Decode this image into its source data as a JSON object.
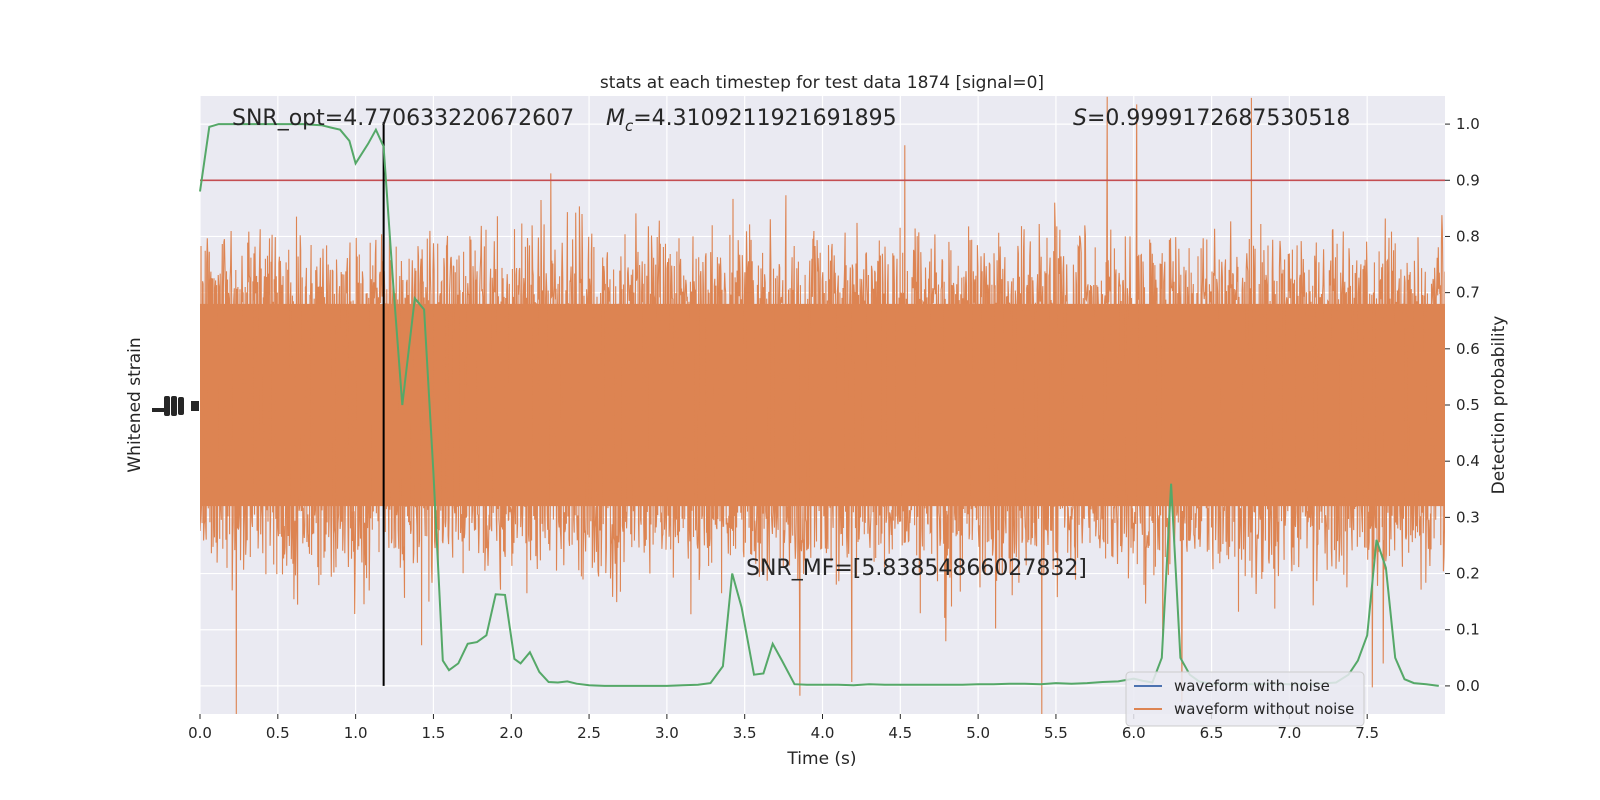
{
  "chart_data": {
    "type": "line",
    "title": "stats at each timestep for test data 1874 [signal=0]",
    "xlabel": "Time (s)",
    "ylabel_left": "Whitened strain",
    "ylabel_right": "Detection probability",
    "xlim": [
      0.0,
      8.0
    ],
    "ylim_right": [
      -0.05,
      1.05
    ],
    "x_ticks": [
      "0.0",
      "0.5",
      "1.0",
      "1.5",
      "2.0",
      "2.5",
      "3.0",
      "3.5",
      "4.0",
      "4.5",
      "5.0",
      "5.5",
      "6.0",
      "6.5",
      "7.0",
      "7.5"
    ],
    "y_ticks_right": [
      "0.0",
      "0.1",
      "0.2",
      "0.3",
      "0.4",
      "0.5",
      "0.6",
      "0.7",
      "0.8",
      "0.9",
      "1.0"
    ],
    "grid": true,
    "threshold": 0.9,
    "event_time": 1.18,
    "annotations": {
      "snr_opt": "SNR_opt=4.770633220672607",
      "mc_symbol": "M",
      "mc_sub": "c",
      "mc_value": "=4.3109211921691895",
      "s_symbol": "S",
      "s_value": "=0.9999172687530518",
      "snr_mf": "SNR_MF=[5.83854866027832]"
    },
    "legend": {
      "position": "lower-right",
      "entries": [
        {
          "name": "waveform with noise",
          "color": "#4c72b0"
        },
        {
          "name": "waveform without noise",
          "color": "#dd8452"
        }
      ]
    },
    "colors": {
      "noise": "#dd8452",
      "probability": "#55a868",
      "threshold": "#c44e52",
      "event_marker": "#000000",
      "background": "#eaeaf2"
    },
    "series": [
      {
        "name": "Detection probability",
        "x": [
          0.0,
          0.06,
          0.12,
          0.18,
          0.24,
          0.3,
          0.36,
          0.42,
          0.48,
          0.54,
          0.6,
          0.66,
          0.72,
          0.78,
          0.84,
          0.9,
          0.96,
          1.0,
          1.08,
          1.13,
          1.18,
          1.24,
          1.3,
          1.38,
          1.44,
          1.5,
          1.56,
          1.6,
          1.66,
          1.72,
          1.78,
          1.84,
          1.9,
          1.96,
          2.02,
          2.06,
          2.12,
          2.18,
          2.24,
          2.3,
          2.36,
          2.42,
          2.5,
          2.6,
          2.7,
          2.8,
          2.9,
          3.0,
          3.1,
          3.2,
          3.28,
          3.36,
          3.42,
          3.48,
          3.56,
          3.62,
          3.68,
          3.74,
          3.82,
          3.9,
          4.0,
          4.1,
          4.2,
          4.3,
          4.4,
          4.5,
          4.6,
          4.7,
          4.8,
          4.9,
          5.0,
          5.1,
          5.2,
          5.3,
          5.4,
          5.5,
          5.6,
          5.7,
          5.8,
          5.9,
          6.0,
          6.06,
          6.12,
          6.18,
          6.24,
          6.3,
          6.36,
          6.42,
          6.5,
          6.6,
          6.7,
          6.8,
          6.9,
          7.0,
          7.1,
          7.2,
          7.3,
          7.38,
          7.44,
          7.5,
          7.56,
          7.62,
          7.68,
          7.74,
          7.8,
          7.88,
          7.96
        ],
        "y": [
          0.88,
          0.995,
          1.0,
          1.0,
          1.0,
          1.0,
          1.0,
          1.0,
          1.0,
          1.0,
          1.0,
          1.0,
          0.999,
          0.998,
          0.994,
          0.99,
          0.97,
          0.93,
          0.965,
          0.99,
          0.96,
          0.72,
          0.5,
          0.69,
          0.67,
          0.38,
          0.045,
          0.028,
          0.04,
          0.075,
          0.078,
          0.09,
          0.163,
          0.162,
          0.048,
          0.04,
          0.06,
          0.025,
          0.007,
          0.006,
          0.008,
          0.004,
          0.001,
          0.0,
          0.0,
          0.0,
          0.0,
          0.0,
          0.001,
          0.002,
          0.005,
          0.035,
          0.2,
          0.14,
          0.02,
          0.022,
          0.075,
          0.045,
          0.003,
          0.002,
          0.002,
          0.002,
          0.001,
          0.003,
          0.002,
          0.002,
          0.002,
          0.002,
          0.002,
          0.002,
          0.003,
          0.003,
          0.004,
          0.004,
          0.003,
          0.005,
          0.004,
          0.005,
          0.007,
          0.008,
          0.013,
          0.009,
          0.006,
          0.05,
          0.36,
          0.05,
          0.02,
          0.008,
          0.003,
          0.003,
          0.003,
          0.003,
          0.004,
          0.003,
          0.003,
          0.004,
          0.006,
          0.02,
          0.045,
          0.09,
          0.26,
          0.21,
          0.05,
          0.012,
          0.005,
          0.003,
          0.0
        ]
      }
    ]
  }
}
